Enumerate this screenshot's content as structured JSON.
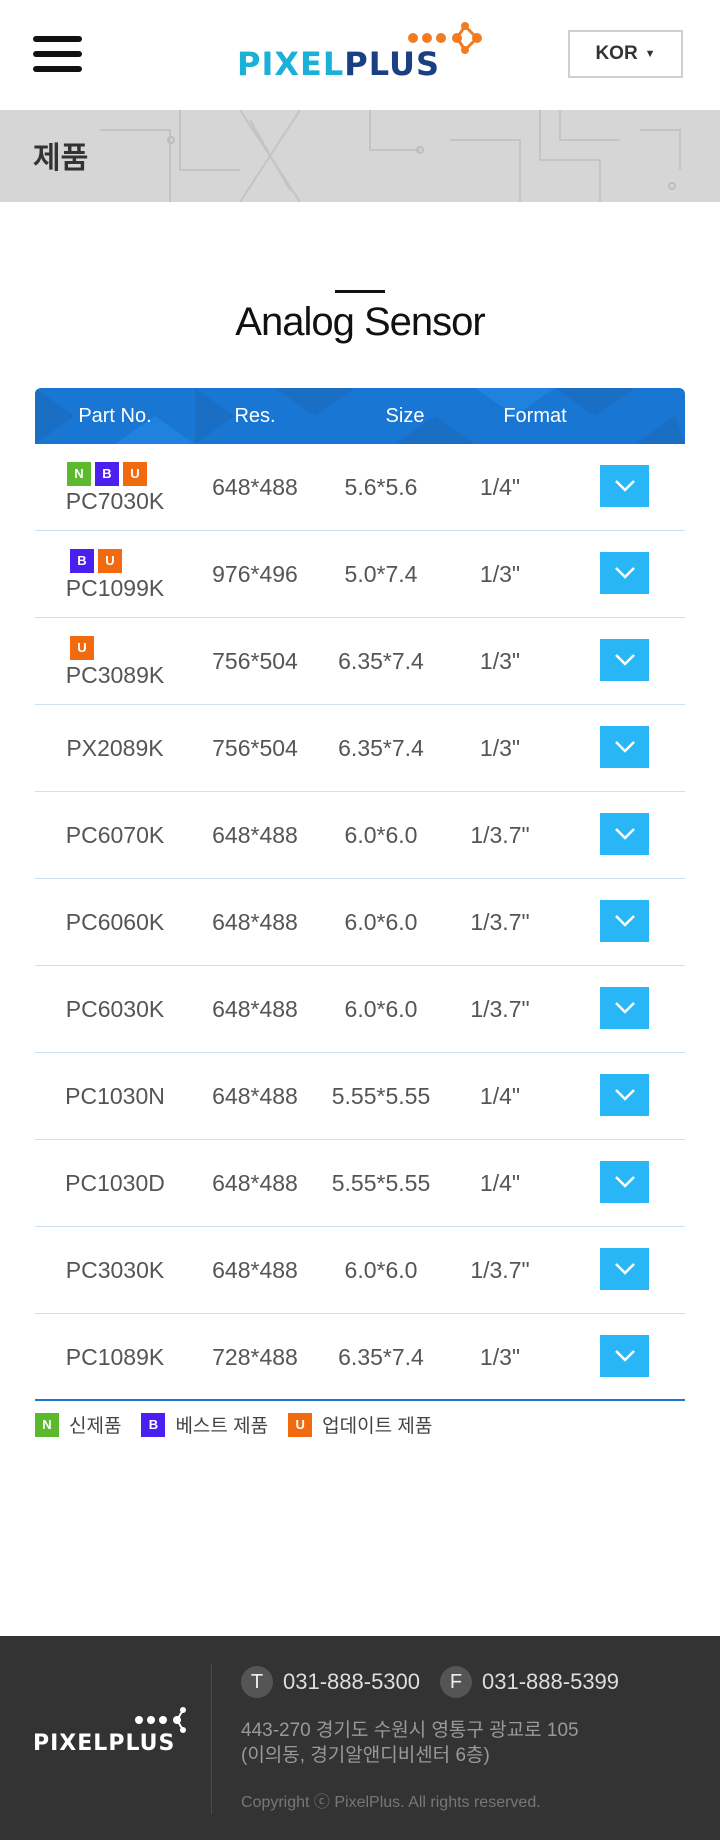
{
  "header": {
    "logo_pixel": "PIXEL",
    "logo_plus": "PLUS",
    "language": "KOR",
    "language_caret": "▼",
    "brand_colors": {
      "pixel": "#1ab0d8",
      "plus": "#1a3f82",
      "dots": "#f47a20"
    }
  },
  "banner": {
    "title": "제품"
  },
  "section": {
    "title": "Analog Sensor"
  },
  "table": {
    "headers": {
      "part": "Part No.",
      "res": "Res.",
      "size": "Size",
      "format": "Format"
    },
    "rows": [
      {
        "badges": [
          "N",
          "B",
          "U"
        ],
        "part": "PC7030K",
        "res": "648*488",
        "size": "5.6*5.6",
        "format": "1/4\""
      },
      {
        "badges": [
          "B",
          "U"
        ],
        "part": "PC1099K",
        "res": "976*496",
        "size": "5.0*7.4",
        "format": "1/3\""
      },
      {
        "badges": [
          "U"
        ],
        "part": "PC3089K",
        "res": "756*504",
        "size": "6.35*7.4",
        "format": "1/3\""
      },
      {
        "badges": [],
        "part": "PX2089K",
        "res": "756*504",
        "size": "6.35*7.4",
        "format": "1/3\""
      },
      {
        "badges": [],
        "part": "PC6070K",
        "res": "648*488",
        "size": "6.0*6.0",
        "format": "1/3.7\""
      },
      {
        "badges": [],
        "part": "PC6060K",
        "res": "648*488",
        "size": "6.0*6.0",
        "format": "1/3.7\""
      },
      {
        "badges": [],
        "part": "PC6030K",
        "res": "648*488",
        "size": "6.0*6.0",
        "format": "1/3.7\""
      },
      {
        "badges": [],
        "part": "PC1030N",
        "res": "648*488",
        "size": "5.55*5.55",
        "format": "1/4\""
      },
      {
        "badges": [],
        "part": "PC1030D",
        "res": "648*488",
        "size": "5.55*5.55",
        "format": "1/4\""
      },
      {
        "badges": [],
        "part": "PC3030K",
        "res": "648*488",
        "size": "6.0*6.0",
        "format": "1/3.7\""
      },
      {
        "badges": [],
        "part": "PC1089K",
        "res": "728*488",
        "size": "6.35*7.4",
        "format": "1/3\""
      }
    ]
  },
  "legend": {
    "new": {
      "badge": "N",
      "label": "신제품",
      "color": "#5cb82d"
    },
    "best": {
      "badge": "B",
      "label": "베스트 제품",
      "color": "#4a1ff0"
    },
    "update": {
      "badge": "U",
      "label": "업데이트 제품",
      "color": "#f26a10"
    }
  },
  "footer": {
    "logo": "PIXELPLUS",
    "tel_label": "T",
    "tel": "031-888-5300",
    "fax_label": "F",
    "fax": "031-888-5399",
    "address_line1": "443-270 경기도 수원시 영통구 광교로 105",
    "address_line2": "(이의동, 경기알앤디비센터 6층)",
    "copyright": "Copyright ⓒ PixelPlus. All rights reserved."
  },
  "icons": {
    "menu": "hamburger-icon",
    "expand": "chevron-down-icon"
  },
  "colors": {
    "table_header": "#1976d2",
    "expand_button": "#29b6f6",
    "footer_bg": "#333333",
    "banner_bg": "#d6d6d6"
  }
}
